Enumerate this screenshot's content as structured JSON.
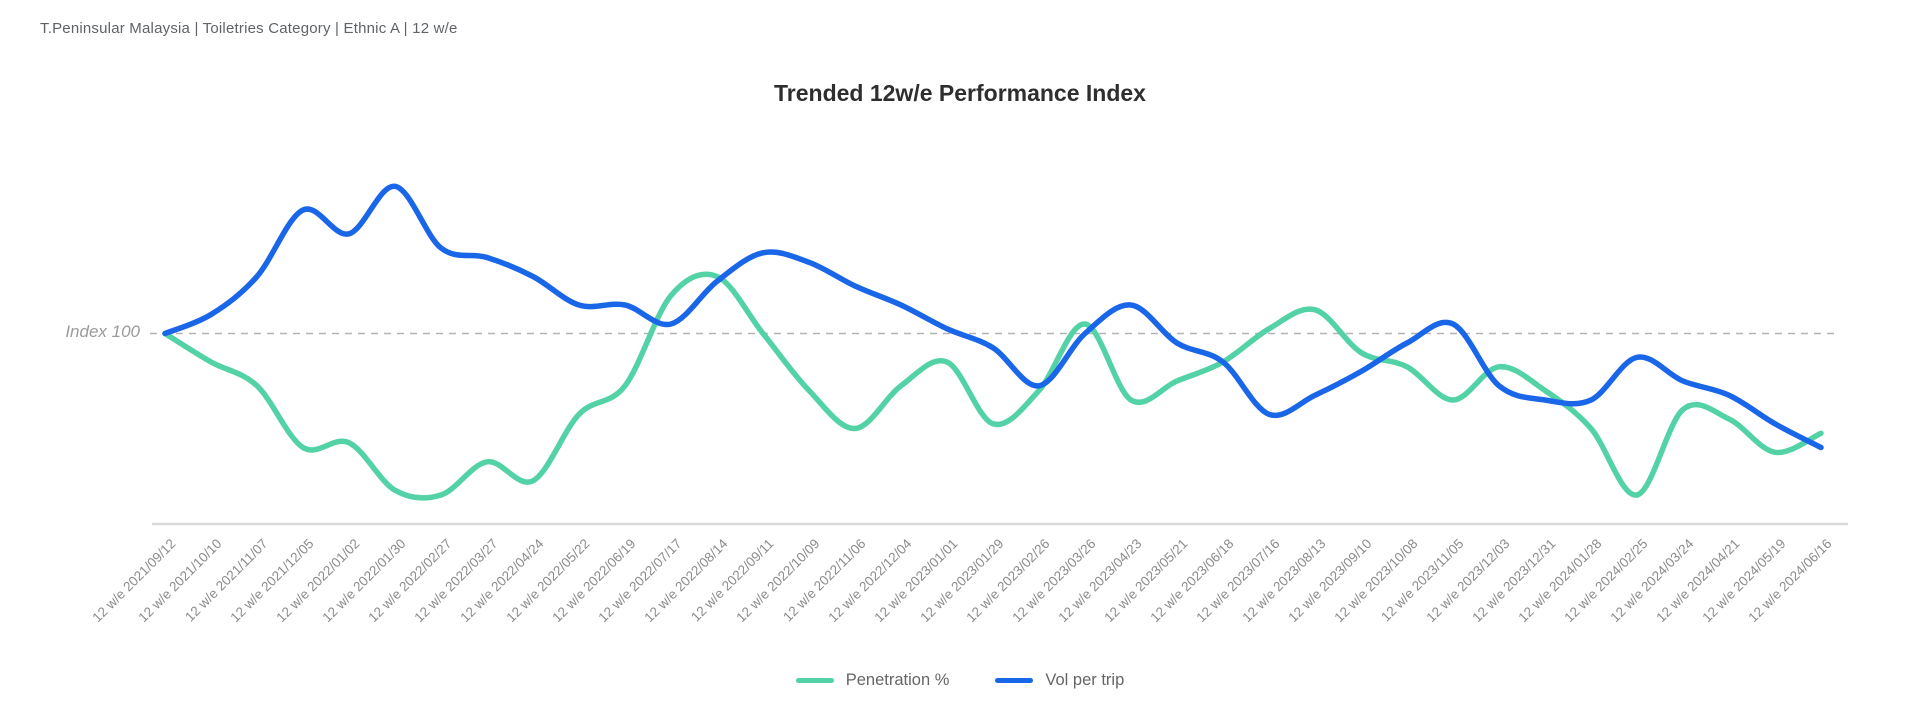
{
  "header": {
    "breadcrumb": "T.Peninsular Malaysia | Toiletries Category | Ethnic A | 12 w/e"
  },
  "chart_data": {
    "type": "line",
    "title": "Trended 12w/e Performance Index",
    "reference_line": {
      "label": "Index 100",
      "value": 100
    },
    "y_axis": {
      "visible": false,
      "approx_range": [
        60,
        145
      ],
      "grid": "off"
    },
    "x_axis": {
      "tick_rotation_deg": -45,
      "baseline": true
    },
    "legend_position": "bottom-center",
    "categories": [
      "12 w/e 2021/09/12",
      "12 w/e 2021/10/10",
      "12 w/e 2021/11/07",
      "12 w/e 2021/12/05",
      "12 w/e 2022/01/02",
      "12 w/e 2022/01/30",
      "12 w/e 2022/02/27",
      "12 w/e 2022/03/27",
      "12 w/e 2022/04/24",
      "12 w/e 2022/05/22",
      "12 w/e 2022/06/19",
      "12 w/e 2022/07/17",
      "12 w/e 2022/08/14",
      "12 w/e 2022/09/11",
      "12 w/e 2022/10/09",
      "12 w/e 2022/11/06",
      "12 w/e 2022/12/04",
      "12 w/e 2023/01/01",
      "12 w/e 2023/01/29",
      "12 w/e 2023/02/26",
      "12 w/e 2023/03/26",
      "12 w/e 2023/04/23",
      "12 w/e 2023/05/21",
      "12 w/e 2023/06/18",
      "12 w/e 2023/07/16",
      "12 w/e 2023/08/13",
      "12 w/e 2023/09/10",
      "12 w/e 2023/10/08",
      "12 w/e 2023/11/05",
      "12 w/e 2023/12/03",
      "12 w/e 2023/12/31",
      "12 w/e 2024/01/28",
      "12 w/e 2024/02/25",
      "12 w/e 2024/03/24",
      "12 w/e 2024/04/21",
      "12 w/e 2024/05/19",
      "12 w/e 2024/06/16"
    ],
    "series": [
      {
        "name": "Penetration %",
        "color": "#53D2A6",
        "values": [
          100,
          94,
          89,
          76,
          77,
          67,
          66,
          73,
          69,
          83,
          89,
          108,
          112,
          100,
          88,
          80,
          89,
          94,
          81,
          88,
          102,
          86,
          90,
          94,
          101,
          105,
          96,
          93,
          86,
          93,
          88,
          80,
          66,
          84,
          82,
          75,
          79
        ]
      },
      {
        "name": "Vol per trip",
        "color": "#1A66E8",
        "values": [
          100,
          104,
          112,
          126,
          121,
          131,
          118,
          116,
          112,
          106,
          106,
          102,
          111,
          117,
          115,
          110,
          106,
          101,
          97,
          89,
          100,
          106,
          98,
          94,
          83,
          87,
          92,
          98,
          102,
          89,
          86,
          86,
          95,
          90,
          87,
          81,
          76
        ]
      }
    ]
  }
}
